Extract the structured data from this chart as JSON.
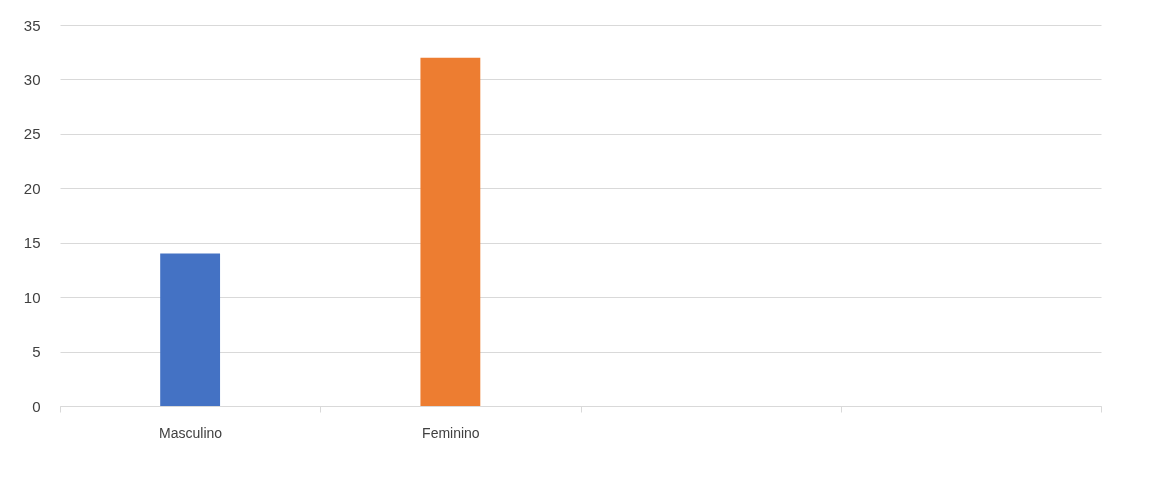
{
  "chart_data": {
    "type": "bar",
    "categories": [
      "Masculino",
      "Feminino",
      null,
      null
    ],
    "values": [
      14,
      32,
      null,
      null
    ],
    "colors": [
      "#4472c4",
      "#ed7d31",
      "#4472c4",
      "#ed7d31"
    ],
    "ylim": [
      0,
      35
    ],
    "yticks": [
      0,
      5,
      10,
      15,
      20,
      25,
      30,
      35
    ],
    "grid": "y",
    "legend": false
  }
}
